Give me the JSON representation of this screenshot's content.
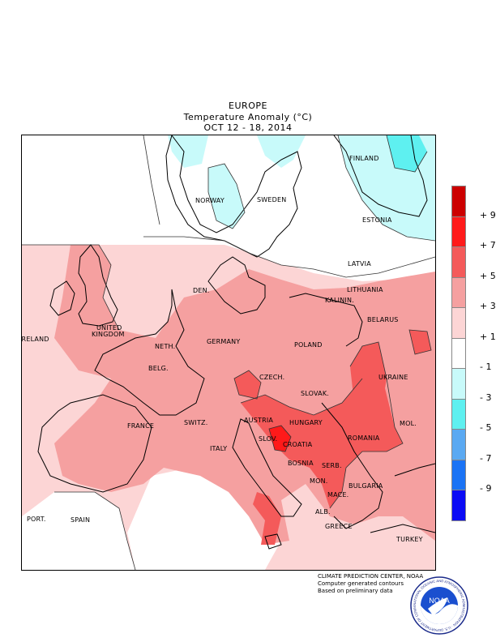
{
  "title": {
    "line1": "EUROPE",
    "line2": "Temperature Anomaly (°C)",
    "line3": "OCT 12 - 18, 2014"
  },
  "labels": {
    "finland": "FINLAND",
    "norway": "NORWAY",
    "sweden": "SWEDEN",
    "estonia": "ESTONIA",
    "latvia": "LATVIA",
    "lithuania": "LITHUANIA",
    "kalinin": "KALININ.",
    "den": "DEN.",
    "belarus": "BELARUS",
    "united1": "UNITED",
    "kingdom": "KINGDOM",
    "ireland": "IRELAND",
    "neth": "NETH.",
    "germany": "GERMANY",
    "poland": "POLAND",
    "belg": "BELG.",
    "czech": "CZECH.",
    "ukraine": "UKRAINE",
    "slovak": "SLOVAK.",
    "austria": "AUSTRIA",
    "hungary": "HUNGARY",
    "france": "FRANCE",
    "switz": "SWITZ.",
    "slov": "SLOV.",
    "croatia": "CROATIA",
    "romania": "ROMANIA",
    "mol": "MOL.",
    "italy": "ITALY",
    "bosnia": "BOSNIA",
    "serb": "SERB.",
    "mon": "MON.",
    "mace": "MACE.",
    "bulgaria": "BULGARIA",
    "port": "PORT.",
    "spain": "SPAIN",
    "alb": "ALB.",
    "greece": "GREECE",
    "turkey": "TURKEY"
  },
  "legend": {
    "colors": [
      "#cc0000",
      "#ff1a1a",
      "#f45a5a",
      "#f5a0a0",
      "#fcd5d5",
      "#ffffff",
      "#c8fafa",
      "#5ef0f0",
      "#5aa9f2",
      "#1a73f5",
      "#0b0bf5"
    ],
    "ticks": [
      "+ 9",
      "+ 7",
      "+ 5",
      "+ 3",
      "+ 1",
      "- 1",
      "- 3",
      "- 5",
      "- 7",
      "- 9"
    ]
  },
  "credits": {
    "line1": "CLIMATE PREDICTION CENTER, NOAA",
    "line2": "Computer generated contours",
    "line3": "Based on preliminary data"
  },
  "logo": {
    "text": "NOAA",
    "ring": "NATIONAL OCEANIC AND ATMOSPHERIC ADMINISTRATION · U.S. DEPARTMENT OF COMMERCE"
  }
}
